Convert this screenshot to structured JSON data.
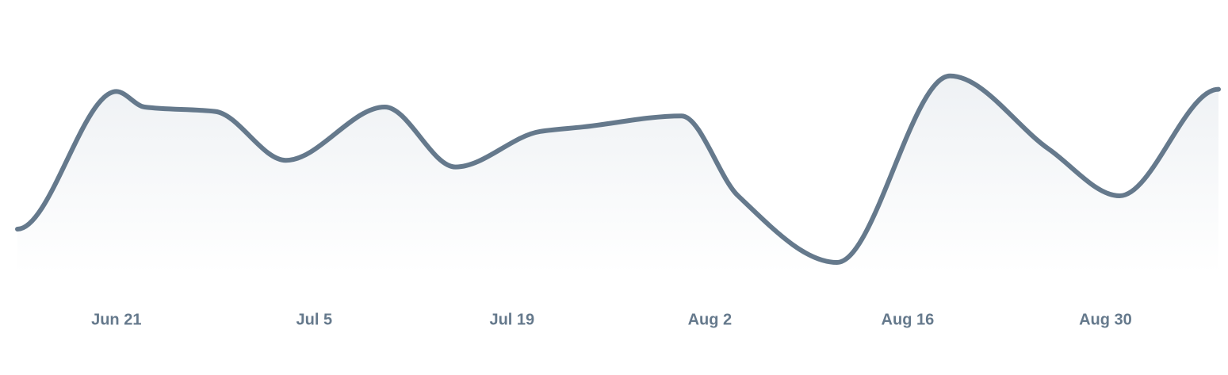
{
  "chart_data": {
    "type": "area",
    "title": "",
    "xlabel": "",
    "ylabel": "",
    "grid": false,
    "legend": "none",
    "x_ticks": [
      {
        "date": "2024-06-21",
        "label": "Jun 21"
      },
      {
        "date": "2024-07-05",
        "label": "Jul 5"
      },
      {
        "date": "2024-07-19",
        "label": "Jul 19"
      },
      {
        "date": "2024-08-02",
        "label": "Aug 2"
      },
      {
        "date": "2024-08-16",
        "label": "Aug 16"
      },
      {
        "date": "2024-08-30",
        "label": "Aug 30"
      }
    ],
    "series": [
      {
        "x": [
          "2024-06-14",
          "2024-06-21",
          "2024-06-23",
          "2024-06-28",
          "2024-07-03",
          "2024-07-10",
          "2024-07-15",
          "2024-07-21",
          "2024-07-24",
          "2024-07-31",
          "2024-08-04",
          "2024-08-11",
          "2024-08-19",
          "2024-08-26",
          "2024-08-31",
          "2024-09-07"
        ],
        "y": [
          20,
          82,
          75,
          73,
          51,
          75,
          48,
          64,
          66,
          71,
          35,
          5,
          89,
          56,
          35,
          83
        ]
      }
    ],
    "ylim": [
      0,
      100
    ],
    "colors": {
      "line": "#65798c",
      "fill_top": "#eef1f4",
      "fill_bottom": "#ffffff",
      "tick_label": "#65798c"
    }
  }
}
